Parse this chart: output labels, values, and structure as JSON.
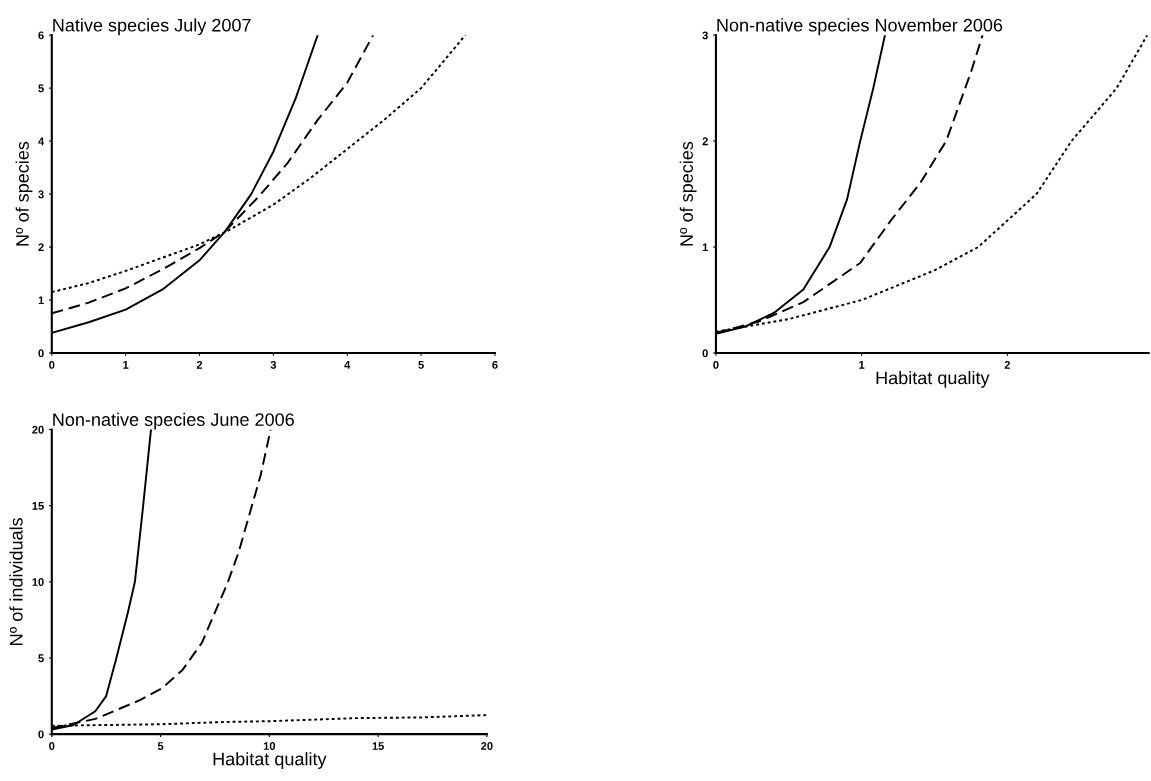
{
  "chart_data": [
    {
      "type": "line",
      "title": "Native species July 2007",
      "ylabel": "Nº of species",
      "xlim": [
        0,
        6
      ],
      "ylim": [
        0,
        6
      ],
      "xticks": [
        0,
        1,
        2,
        3,
        4,
        5,
        6
      ],
      "yticks": [
        0,
        1,
        2,
        3,
        4,
        5,
        6
      ],
      "grid": false,
      "marker": "none",
      "series": [
        {
          "color": "#000000",
          "line_style": "solid",
          "x": [
            0,
            0.5,
            1,
            1.5,
            2,
            2.35,
            2.7,
            3,
            3.3,
            3.6
          ],
          "values": [
            0.38,
            0.58,
            0.82,
            1.2,
            1.75,
            2.3,
            3.0,
            3.8,
            4.8,
            6.0
          ]
        },
        {
          "color": "#000000",
          "line_style": "dashed",
          "x": [
            0,
            0.5,
            1,
            1.5,
            2,
            2.35,
            2.8,
            3.2,
            3.6,
            4.0,
            4.35
          ],
          "values": [
            0.75,
            0.95,
            1.22,
            1.58,
            1.98,
            2.3,
            2.95,
            3.6,
            4.4,
            5.1,
            6.0
          ]
        },
        {
          "color": "#000000",
          "line_style": "dotted",
          "x": [
            0,
            0.5,
            1,
            1.5,
            2,
            2.4,
            3,
            3.5,
            4,
            4.5,
            5,
            5.6
          ],
          "values": [
            1.15,
            1.32,
            1.55,
            1.8,
            2.05,
            2.32,
            2.8,
            3.3,
            3.85,
            4.4,
            5.0,
            6.0
          ]
        }
      ]
    },
    {
      "type": "line",
      "title": "Non-native species November 2006",
      "xlabel": "Habitat quality",
      "ylabel": "Nº of species",
      "xlim": [
        0,
        2.97
      ],
      "ylim": [
        0,
        3
      ],
      "xticks": [
        0,
        1,
        2
      ],
      "yticks": [
        0,
        1,
        2,
        3
      ],
      "grid": false,
      "marker": "none",
      "series": [
        {
          "color": "#000000",
          "line_style": "solid",
          "x": [
            0,
            0.2,
            0.4,
            0.6,
            0.78,
            0.9,
            0.99,
            1.08,
            1.16
          ],
          "values": [
            0.18,
            0.25,
            0.38,
            0.6,
            1.0,
            1.45,
            2.0,
            2.5,
            3.0
          ]
        },
        {
          "color": "#000000",
          "line_style": "dashed",
          "x": [
            0,
            0.3,
            0.6,
            0.99,
            1.2,
            1.4,
            1.58,
            1.75,
            1.83
          ],
          "values": [
            0.19,
            0.3,
            0.48,
            0.85,
            1.25,
            1.6,
            2.0,
            2.65,
            3.0
          ]
        },
        {
          "color": "#000000",
          "line_style": "dotted",
          "x": [
            0,
            0.5,
            1,
            1.5,
            1.8,
            2.2,
            2.44,
            2.75,
            2.96
          ],
          "values": [
            0.2,
            0.32,
            0.5,
            0.78,
            1.0,
            1.5,
            2.0,
            2.5,
            3.0
          ]
        }
      ]
    },
    {
      "type": "line",
      "title": "Non-native species June 2006",
      "xlabel": "Habitat quality",
      "ylabel": "Nº of individuals",
      "xlim": [
        0,
        20
      ],
      "ylim": [
        0,
        20
      ],
      "xticks": [
        0,
        5,
        10,
        15,
        20
      ],
      "yticks": [
        0,
        5,
        10,
        15,
        20
      ],
      "grid": false,
      "marker": "none",
      "series": [
        {
          "color": "#000000",
          "line_style": "solid",
          "x": [
            0,
            1,
            2,
            2.5,
            2.97,
            3.5,
            3.82,
            4.2,
            4.56
          ],
          "values": [
            0.3,
            0.6,
            1.5,
            2.5,
            5,
            8,
            10,
            15,
            20
          ]
        },
        {
          "color": "#000000",
          "line_style": "dashed",
          "x": [
            0,
            2,
            4,
            5.05,
            6,
            6.9,
            8.1,
            8.6,
            9.2,
            9.6,
            10.06
          ],
          "values": [
            0.4,
            1.0,
            2.2,
            3.0,
            4.2,
            6.0,
            10,
            12,
            15,
            17,
            20
          ]
        },
        {
          "color": "#000000",
          "line_style": "dotted",
          "x": [
            0,
            5,
            8,
            10,
            14,
            17,
            20
          ],
          "values": [
            0.55,
            0.65,
            0.8,
            0.85,
            1.05,
            1.1,
            1.25
          ]
        }
      ]
    }
  ]
}
